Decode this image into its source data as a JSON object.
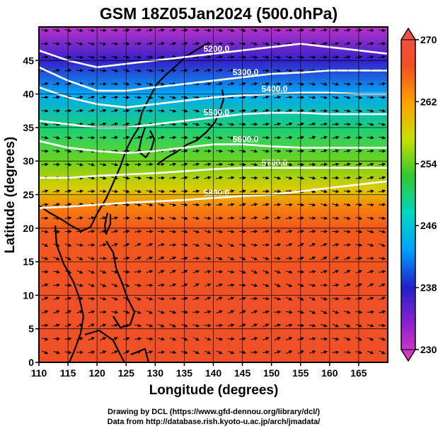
{
  "title": "GSM 18Z05Jan2024 (500.0hPa)",
  "xlabel": "Longitude (degrees)",
  "ylabel": "Latitude  (degrees)",
  "credits": [
    "Drawing by DCL (https://www.gfd-dennou.org/library/dcl/)",
    "Data from http://database.rish.kyoto-u.ac.jp/arch/jmadata/"
  ],
  "chart_data": {
    "type": "heatmap",
    "xlim": [
      110,
      170
    ],
    "ylim": [
      0,
      50
    ],
    "x_ticks": [
      110,
      115,
      120,
      125,
      130,
      135,
      140,
      145,
      150,
      155,
      160,
      165
    ],
    "y_ticks": [
      0,
      5,
      10,
      15,
      20,
      25,
      30,
      35,
      40,
      45
    ],
    "grid": true,
    "colorbar": {
      "field": "temperature",
      "range": [
        230,
        270
      ],
      "ticks": [
        230,
        238,
        246,
        254,
        262,
        270
      ],
      "colors": [
        "#e040c0",
        "#9020d0",
        "#2020c8",
        "#00a0ff",
        "#00d8c0",
        "#30c830",
        "#c8e000",
        "#ffa000",
        "#f05020",
        "#f05050"
      ]
    },
    "temperature_by_latitude": [
      {
        "lat": 0,
        "value": 266
      },
      {
        "lat": 10,
        "value": 266
      },
      {
        "lat": 20,
        "value": 265
      },
      {
        "lat": 23,
        "value": 263
      },
      {
        "lat": 26,
        "value": 258
      },
      {
        "lat": 30,
        "value": 254
      },
      {
        "lat": 35,
        "value": 250
      },
      {
        "lat": 40,
        "value": 244
      },
      {
        "lat": 45,
        "value": 238
      },
      {
        "lat": 50,
        "value": 232
      }
    ],
    "height_contours": [
      {
        "label": "5200.0",
        "points": [
          [
            110,
            46.5
          ],
          [
            115,
            45
          ],
          [
            120,
            44
          ],
          [
            125,
            44.5
          ],
          [
            130,
            45
          ],
          [
            135,
            45.5
          ],
          [
            140,
            46
          ],
          [
            145,
            46.5
          ],
          [
            150,
            47
          ],
          [
            155,
            47.5
          ],
          [
            160,
            47
          ],
          [
            165,
            46.5
          ],
          [
            170,
            46
          ]
        ]
      },
      {
        "label": "5300.0",
        "points": [
          [
            110,
            44
          ],
          [
            115,
            42
          ],
          [
            120,
            40.5
          ],
          [
            125,
            40.5
          ],
          [
            130,
            41
          ],
          [
            135,
            41.5
          ],
          [
            140,
            42
          ],
          [
            145,
            42.5
          ],
          [
            150,
            43
          ],
          [
            155,
            43.2
          ],
          [
            160,
            43.5
          ],
          [
            165,
            43.5
          ],
          [
            170,
            43.5
          ]
        ]
      },
      {
        "label": "5400.0",
        "points": [
          [
            110,
            41
          ],
          [
            115,
            39.5
          ],
          [
            120,
            38.5
          ],
          [
            125,
            38
          ],
          [
            130,
            38.5
          ],
          [
            135,
            39
          ],
          [
            140,
            39.5
          ],
          [
            145,
            39.8
          ],
          [
            150,
            40
          ],
          [
            155,
            40.2
          ],
          [
            160,
            40.2
          ],
          [
            165,
            40
          ],
          [
            170,
            40
          ]
        ]
      },
      {
        "label": "5500.0",
        "points": [
          [
            110,
            36
          ],
          [
            115,
            35.5
          ],
          [
            120,
            35
          ],
          [
            125,
            35
          ],
          [
            130,
            35.5
          ],
          [
            135,
            36
          ],
          [
            140,
            36.5
          ],
          [
            145,
            37
          ],
          [
            150,
            37.2
          ],
          [
            155,
            37.2
          ],
          [
            160,
            37
          ],
          [
            165,
            37
          ],
          [
            170,
            37
          ]
        ]
      },
      {
        "label": "5600.0",
        "points": [
          [
            110,
            33
          ],
          [
            115,
            32
          ],
          [
            120,
            31.5
          ],
          [
            125,
            31.2
          ],
          [
            130,
            31.5
          ],
          [
            135,
            32
          ],
          [
            140,
            32.5
          ],
          [
            145,
            32.5
          ],
          [
            150,
            32.2
          ],
          [
            155,
            32
          ],
          [
            160,
            32
          ],
          [
            165,
            32
          ],
          [
            170,
            32
          ]
        ]
      },
      {
        "label": "5700.0",
        "points": [
          [
            110,
            27.5
          ],
          [
            115,
            27.5
          ],
          [
            120,
            27.8
          ],
          [
            125,
            28
          ],
          [
            130,
            28.2
          ],
          [
            135,
            28.5
          ],
          [
            140,
            28.8
          ],
          [
            145,
            29
          ],
          [
            150,
            29
          ],
          [
            155,
            29
          ],
          [
            160,
            29
          ],
          [
            165,
            29
          ],
          [
            170,
            29
          ]
        ]
      },
      {
        "label": "5800.0",
        "points": [
          [
            110,
            23
          ],
          [
            115,
            23.2
          ],
          [
            120,
            23.5
          ],
          [
            125,
            23.8
          ],
          [
            130,
            24
          ],
          [
            135,
            24.2
          ],
          [
            140,
            24.5
          ],
          [
            145,
            24.8
          ],
          [
            150,
            25
          ],
          [
            155,
            25.5
          ],
          [
            160,
            26
          ],
          [
            165,
            26.5
          ],
          [
            170,
            27
          ]
        ]
      }
    ]
  }
}
